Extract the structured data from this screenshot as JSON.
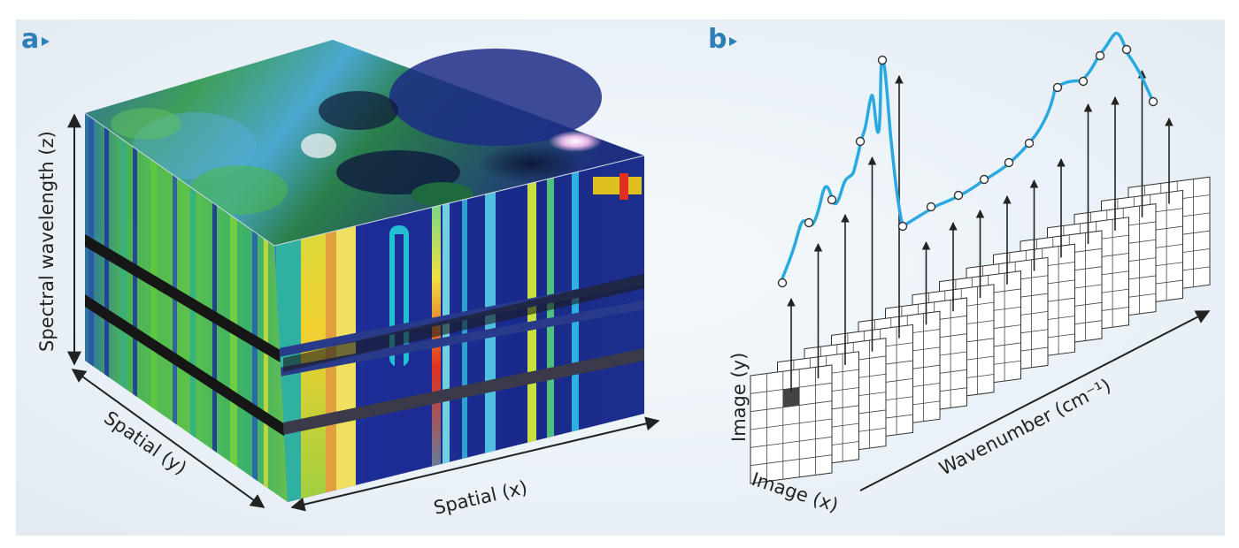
{
  "panel_a": {
    "label": "a",
    "axis_z": "Spectral wavelength (z)",
    "axis_y": "Spatial (y)",
    "axis_x": "Spatial (x)"
  },
  "panel_b": {
    "label": "b",
    "axis_image_y": "Image (y)",
    "axis_image_x": "Image (x)",
    "axis_wavenumber": "Wavenumber (cm⁻¹)"
  },
  "colors": {
    "accent": "#2e7fb8",
    "spectrum_line": "#29a9e0"
  }
}
